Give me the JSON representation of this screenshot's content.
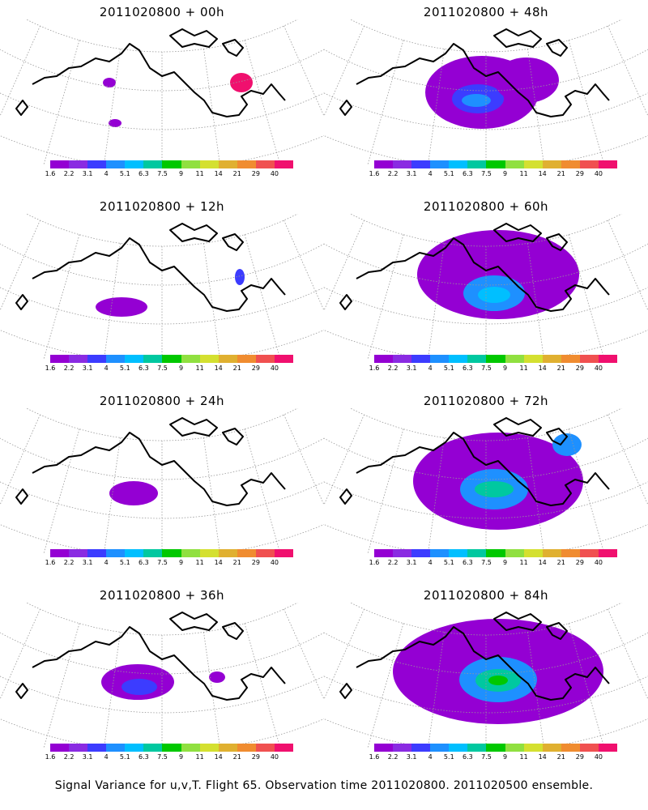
{
  "panels": [
    {
      "title": "2011020800 + 00h"
    },
    {
      "title": "2011020800 + 48h"
    },
    {
      "title": "2011020800 + 12h"
    },
    {
      "title": "2011020800 + 60h"
    },
    {
      "title": "2011020800 + 24h"
    },
    {
      "title": "2011020800 + 72h"
    },
    {
      "title": "2011020800 + 36h"
    },
    {
      "title": "2011020800 + 84h"
    }
  ],
  "legend": {
    "colors": [
      "#9400d3",
      "#8a2be2",
      "#3c3cff",
      "#1e90ff",
      "#00bfff",
      "#00c8a0",
      "#00c800",
      "#90e040",
      "#d4e030",
      "#e0b030",
      "#f08c30",
      "#f05050",
      "#f0106e"
    ],
    "labels": [
      "1.6",
      "2.2",
      "3.1",
      "4",
      "5.1",
      "6.3",
      "7.5",
      "9",
      "11",
      "14",
      "21",
      "29",
      "40"
    ]
  },
  "caption": "Signal Variance for u,v,T. Flight 65. Observation time 2011020800. 2011020500 ensemble."
}
